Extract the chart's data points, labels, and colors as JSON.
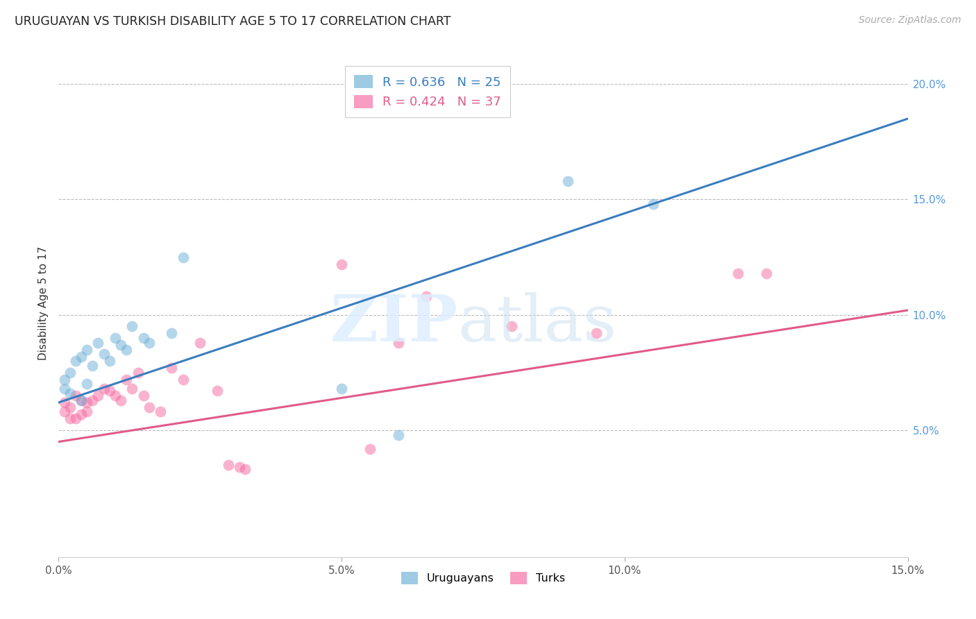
{
  "title": "URUGUAYAN VS TURKISH DISABILITY AGE 5 TO 17 CORRELATION CHART",
  "source": "Source: ZipAtlas.com",
  "ylabel": "Disability Age 5 to 17",
  "xlim": [
    0.0,
    0.15
  ],
  "ylim": [
    -0.005,
    0.215
  ],
  "x_ticks": [
    0.0,
    0.05,
    0.1,
    0.15
  ],
  "x_ticklabels": [
    "0.0%",
    "5.0%",
    "10.0%",
    "15.0%"
  ],
  "y_ticks": [
    0.05,
    0.1,
    0.15,
    0.2
  ],
  "y_ticklabels": [
    "5.0%",
    "10.0%",
    "15.0%",
    "20.0%"
  ],
  "uruguayan_color": "#6baed6",
  "turkish_color": "#f768a1",
  "line_blue": "#3a7dbf",
  "line_pink": "#e05a8a",
  "uruguayan_R": "0.636",
  "uruguayan_N": "25",
  "turkish_R": "0.424",
  "turkish_N": "37",
  "background_color": "#ffffff",
  "grid_color": "#bbbbbb",
  "title_color": "#222222",
  "source_color": "#aaaaaa",
  "ylabel_color": "#333333",
  "right_tick_color": "#5599dd",
  "uruguayan_x": [
    0.001,
    0.001,
    0.002,
    0.002,
    0.003,
    0.004,
    0.004,
    0.005,
    0.005,
    0.006,
    0.007,
    0.008,
    0.009,
    0.01,
    0.011,
    0.012,
    0.013,
    0.015,
    0.016,
    0.02,
    0.022,
    0.05,
    0.06,
    0.09,
    0.105
  ],
  "uruguayan_y": [
    0.068,
    0.072,
    0.066,
    0.075,
    0.08,
    0.063,
    0.082,
    0.07,
    0.085,
    0.078,
    0.088,
    0.083,
    0.08,
    0.09,
    0.087,
    0.085,
    0.095,
    0.09,
    0.088,
    0.092,
    0.125,
    0.068,
    0.048,
    0.158,
    0.148
  ],
  "turkish_x": [
    0.001,
    0.001,
    0.002,
    0.002,
    0.003,
    0.003,
    0.004,
    0.004,
    0.005,
    0.005,
    0.006,
    0.007,
    0.008,
    0.009,
    0.01,
    0.011,
    0.012,
    0.013,
    0.014,
    0.015,
    0.016,
    0.018,
    0.02,
    0.022,
    0.025,
    0.028,
    0.03,
    0.032,
    0.033,
    0.05,
    0.055,
    0.06,
    0.065,
    0.08,
    0.095,
    0.12,
    0.125
  ],
  "turkish_y": [
    0.062,
    0.058,
    0.06,
    0.055,
    0.055,
    0.065,
    0.057,
    0.063,
    0.058,
    0.062,
    0.063,
    0.065,
    0.068,
    0.067,
    0.065,
    0.063,
    0.072,
    0.068,
    0.075,
    0.065,
    0.06,
    0.058,
    0.077,
    0.072,
    0.088,
    0.067,
    0.035,
    0.034,
    0.033,
    0.122,
    0.042,
    0.088,
    0.108,
    0.095,
    0.092,
    0.118,
    0.118
  ],
  "uru_line_x": [
    0.0,
    0.15
  ],
  "uru_line_y": [
    0.062,
    0.185
  ],
  "tur_line_x": [
    0.0,
    0.15
  ],
  "tur_line_y": [
    0.045,
    0.102
  ]
}
